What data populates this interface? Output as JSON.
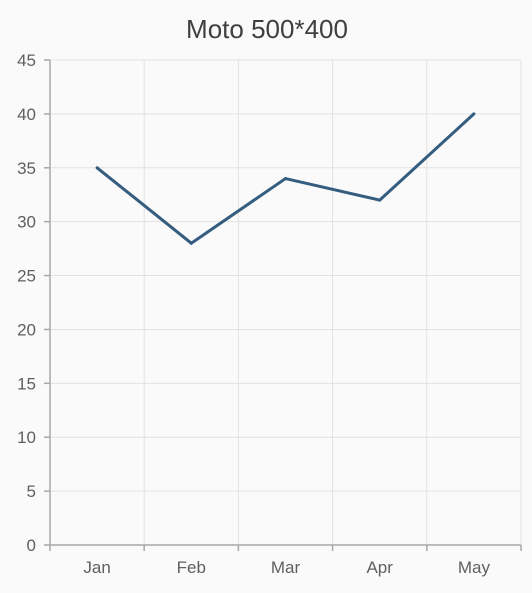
{
  "chart_data": {
    "type": "line",
    "title": "Moto 500*400",
    "xlabel": "",
    "ylabel": "",
    "categories": [
      "Jan",
      "Feb",
      "Mar",
      "Apr",
      "May"
    ],
    "series": [
      {
        "values": [
          35,
          28,
          34,
          32,
          40
        ],
        "color": "#355d7f"
      }
    ],
    "ylim": [
      0,
      45
    ],
    "yticks": [
      0,
      5,
      10,
      15,
      20,
      25,
      30,
      35,
      40,
      45
    ],
    "grid": true,
    "legend": "none"
  }
}
